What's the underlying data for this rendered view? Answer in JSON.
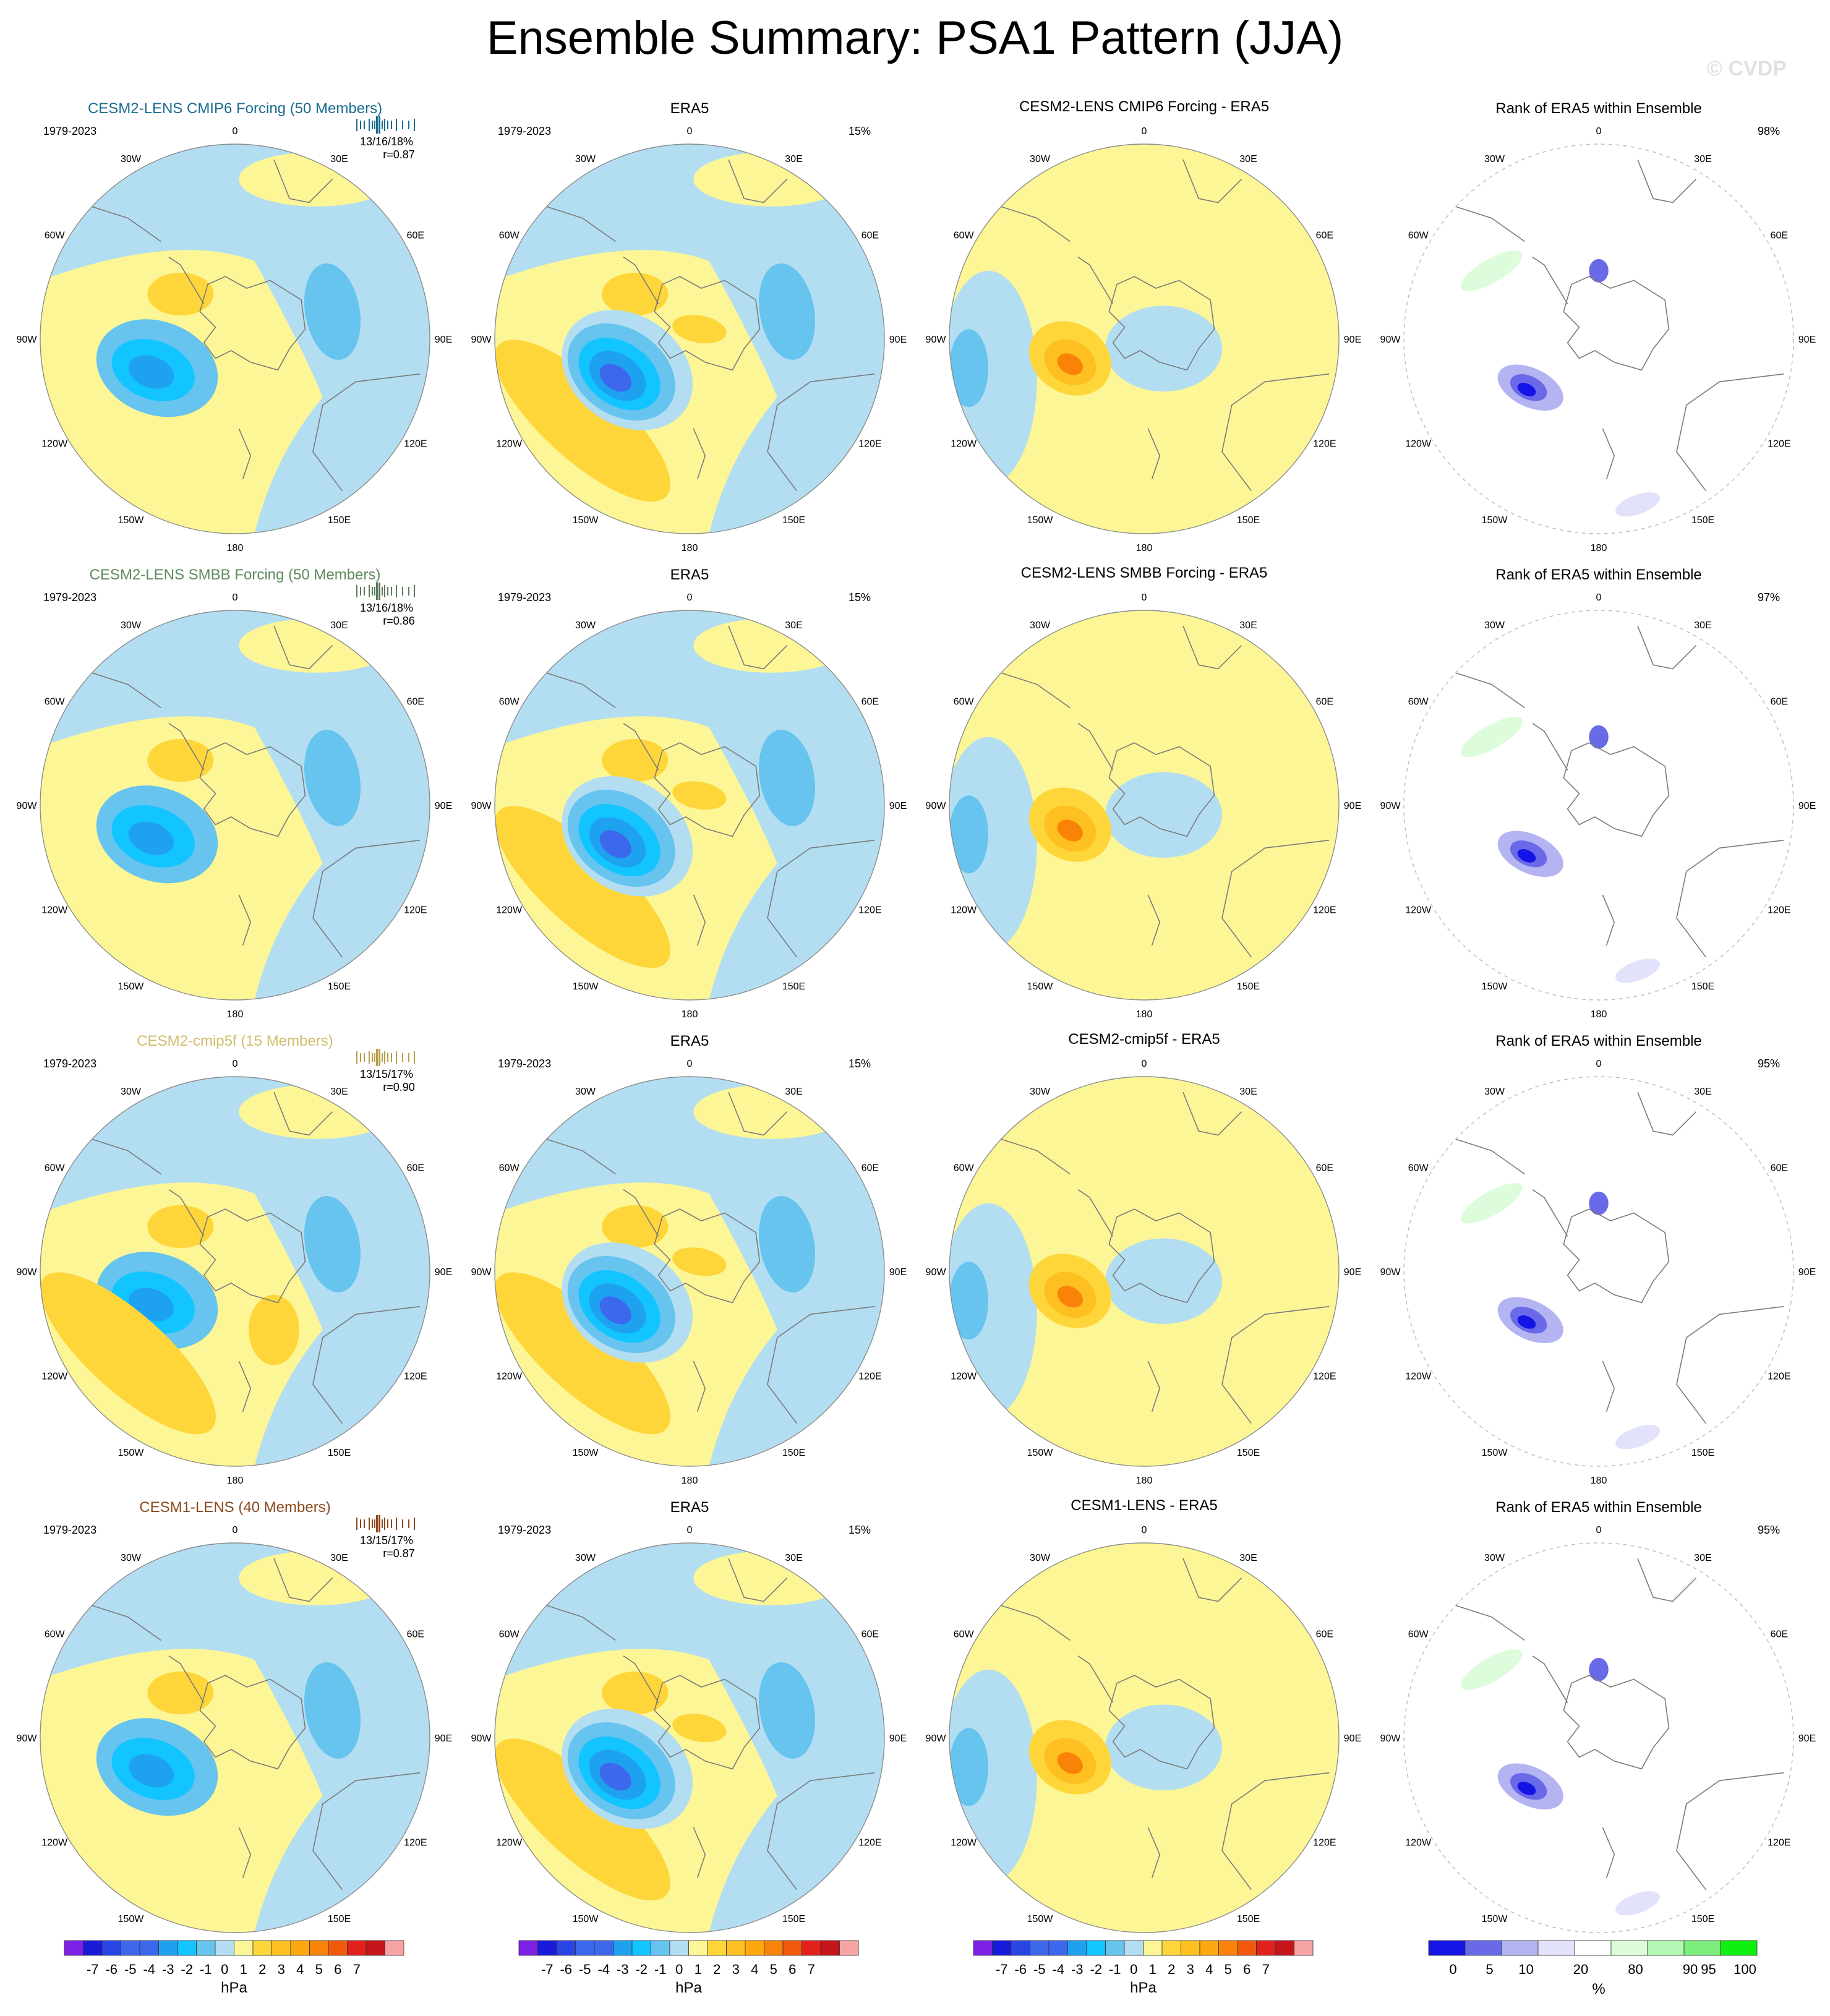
{
  "title": "Ensemble Summary: PSA1 Pattern (JJA)",
  "watermark": "© CVDP",
  "colors": {
    "land_line": "#7a7a7a",
    "circle_line": "#8c8c8c",
    "cold_levels": [
      "#7d20e6",
      "#1a1adb",
      "#2a45e6",
      "#3c68ee",
      "#1ea2f0",
      "#12c4ff",
      "#66c4ef",
      "#b3def2"
    ],
    "warm_levels": [
      "#fdf696",
      "#fed63a",
      "#fdc020",
      "#fba90f",
      "#f98309",
      "#f15a0d",
      "#e2211c",
      "#c4151a",
      "#f6a3a3"
    ],
    "rank_levels": [
      "#1414e6",
      "#6a6ae8",
      "#b4b4f2",
      "#e2e2fa",
      "#ffffff",
      "#dcfcdc",
      "#b4f7b4",
      "#7cee7c",
      "#10f010"
    ]
  },
  "chart_data": {
    "type": "polar-contour-panels",
    "period": "1979-2023",
    "lon_labels": [
      "0",
      "30E",
      "60E",
      "90E",
      "120E",
      "150E",
      "180",
      "150W",
      "120W",
      "90W",
      "60W",
      "30W"
    ],
    "rows": [
      {
        "model": {
          "title": "CESM2-LENS CMIP6 Forcing (50 Members)",
          "title_color": "#1a6d8f",
          "stats": "13/16/18%",
          "r": "r=0.87",
          "strip_color": "#1a6d8f"
        },
        "obs": {
          "title": "ERA5",
          "pct": "15%"
        },
        "diff": {
          "title": "CESM2-LENS CMIP6 Forcing - ERA5"
        },
        "rank": {
          "title": "Rank of ERA5 within Ensemble",
          "pct": "98%"
        }
      },
      {
        "model": {
          "title": "CESM2-LENS SMBB Forcing (50 Members)",
          "title_color": "#5e8a5e",
          "stats": "13/16/18%",
          "r": "r=0.86",
          "strip_color": "#5e7a5e"
        },
        "obs": {
          "title": "ERA5",
          "pct": "15%"
        },
        "diff": {
          "title": "CESM2-LENS SMBB Forcing - ERA5"
        },
        "rank": {
          "title": "Rank of ERA5 within Ensemble",
          "pct": "97%"
        }
      },
      {
        "model": {
          "title": "CESM2-cmip5f (15 Members)",
          "title_color": "#d1bd6a",
          "stats": "13/15/17%",
          "r": "r=0.90",
          "strip_color": "#b89e48"
        },
        "obs": {
          "title": "ERA5",
          "pct": "15%"
        },
        "diff": {
          "title": "CESM2-cmip5f - ERA5"
        },
        "rank": {
          "title": "Rank of ERA5 within Ensemble",
          "pct": "95%"
        }
      },
      {
        "model": {
          "title": "CESM1-LENS (40 Members)",
          "title_color": "#8b4a1f",
          "stats": "13/15/17%",
          "r": "r=0.87",
          "strip_color": "#8b4a1f"
        },
        "obs": {
          "title": "ERA5",
          "pct": "15%"
        },
        "diff": {
          "title": "CESM1-LENS - ERA5"
        },
        "rank": {
          "title": "Rank of ERA5 within Ensemble",
          "pct": "95%"
        }
      }
    ],
    "colorbars": {
      "hpa": {
        "labels": [
          "-7",
          "-6",
          "-5",
          "-4",
          "-3",
          "-2",
          "-1",
          "0",
          "1",
          "2",
          "3",
          "4",
          "5",
          "6",
          "7"
        ],
        "unit": "hPa"
      },
      "rank": {
        "labels": [
          "0",
          "5",
          "10",
          "20",
          "80",
          "90",
          "95",
          "100"
        ],
        "unit": "%"
      }
    }
  }
}
